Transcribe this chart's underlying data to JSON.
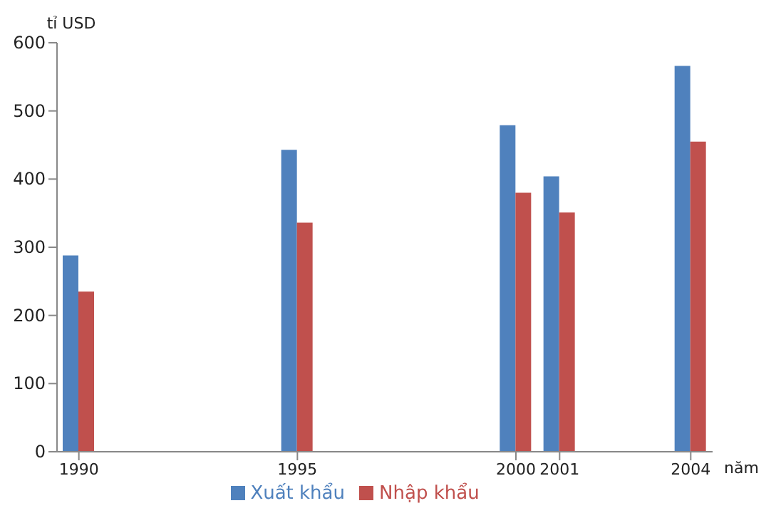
{
  "chart_data": {
    "type": "bar",
    "ylabel": "tỉ USD",
    "xlabel": "năm",
    "x": [
      1990,
      1995,
      2000,
      2001,
      2004
    ],
    "series": [
      {
        "name": "Xuất khẩu",
        "color": "#4f81bd",
        "values": [
          288,
          443,
          479,
          404,
          566
        ]
      },
      {
        "name": "Nhập khẩu",
        "color": "#c0504d",
        "values": [
          235,
          336,
          380,
          351,
          455
        ]
      }
    ],
    "xlim": [
      1989.5,
      2004.5
    ],
    "xticks": [
      1990,
      1995,
      2000,
      2001,
      2004
    ],
    "ylim": [
      0,
      600
    ],
    "yticks": [
      0,
      100,
      200,
      300,
      400,
      500,
      600
    ],
    "grid": false,
    "legend": "bottom"
  }
}
